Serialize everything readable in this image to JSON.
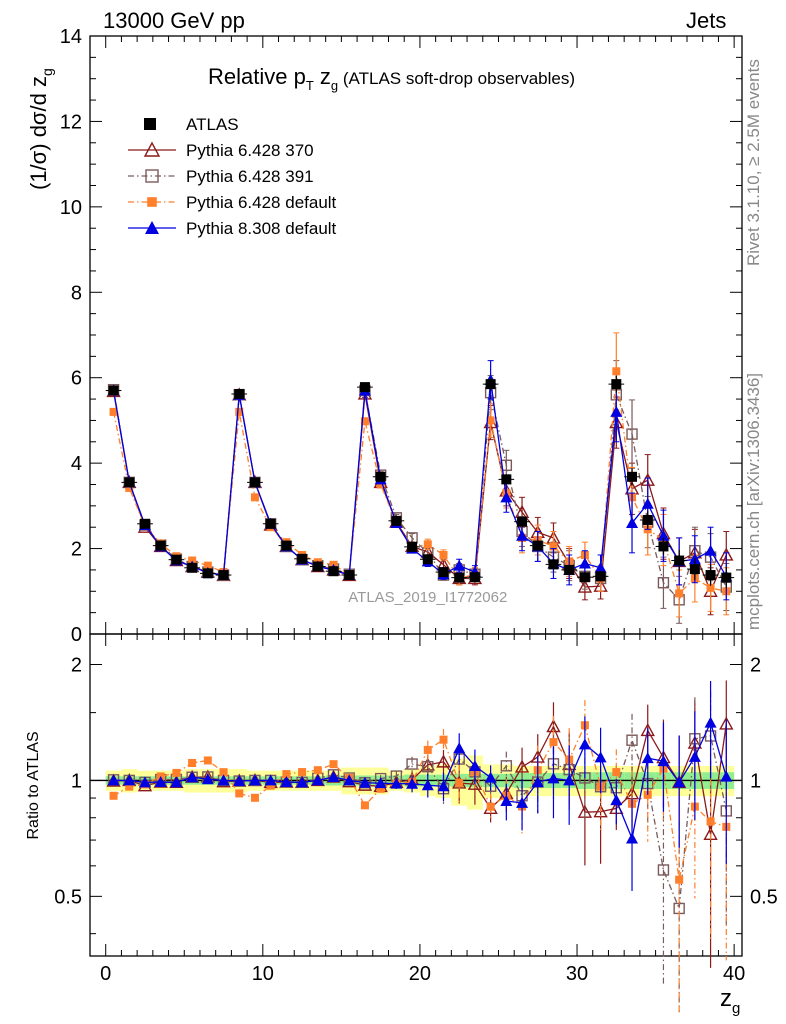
{
  "header": {
    "energy": "13000 GeV pp",
    "process": "Jets",
    "rivet": "Rivet 3.1.10, ≥ 2.5M events",
    "site": "mcplots.cern.ch [arXiv:1306.3436]"
  },
  "chart_data": [
    {
      "type": "line",
      "title_main": "Relative p",
      "title_sub": "T",
      "title_zg": " z",
      "title_g": "g",
      "title_rest": " (ATLAS soft-drop observables)",
      "ylabel_pre": "(1/σ) dσ/d z",
      "ylabel_sub": "g",
      "watermark": "ATLAS_2019_I1772062",
      "xlim": [
        -1,
        40.5
      ],
      "ylim": [
        0,
        14
      ],
      "yticks": [
        0,
        2,
        4,
        6,
        8,
        10,
        12,
        14
      ],
      "x": [
        0.5,
        1.5,
        2.5,
        3.5,
        4.5,
        5.5,
        6.5,
        7.5,
        8.5,
        9.5,
        10.5,
        11.5,
        12.5,
        13.5,
        14.5,
        15.5,
        16.5,
        17.5,
        18.5,
        19.5,
        20.5,
        21.5,
        22.5,
        23.5,
        24.5,
        25.5,
        26.5,
        27.5,
        28.5,
        29.5,
        30.5,
        31.5,
        32.5,
        33.5,
        34.5,
        35.5,
        36.5,
        37.5,
        38.5,
        39.5
      ],
      "series": [
        {
          "name": "ATLAS",
          "color": "#000000",
          "marker": "square-filled",
          "dash": "none",
          "values": [
            5.7,
            3.55,
            2.58,
            2.07,
            1.74,
            1.55,
            1.42,
            1.38,
            5.62,
            3.55,
            2.58,
            2.07,
            1.76,
            1.58,
            1.47,
            1.38,
            5.78,
            3.68,
            2.65,
            2.04,
            1.75,
            1.45,
            1.32,
            1.33,
            5.85,
            3.62,
            2.63,
            2.07,
            1.63,
            1.5,
            1.33,
            1.35,
            5.85,
            3.68,
            2.67,
            2.05,
            1.72,
            1.52,
            1.38,
            1.32
          ],
          "errors": [
            0.1,
            0.07,
            0.05,
            0.05,
            0.05,
            0.05,
            0.05,
            0.05,
            0.1,
            0.07,
            0.05,
            0.05,
            0.05,
            0.05,
            0.05,
            0.05,
            0.1,
            0.1,
            0.08,
            0.08,
            0.08,
            0.08,
            0.08,
            0.08,
            0.15,
            0.12,
            0.12,
            0.12,
            0.12,
            0.12,
            0.12,
            0.12,
            0.2,
            0.2,
            0.2,
            0.2,
            0.25,
            0.25,
            0.25,
            0.25
          ]
        },
        {
          "name": "Pythia 6.428 370",
          "color": "#8b1a1a",
          "marker": "triangle-open",
          "dash": "none",
          "values": [
            5.68,
            3.55,
            2.5,
            2.05,
            1.72,
            1.58,
            1.45,
            1.37,
            5.6,
            3.55,
            2.55,
            2.05,
            1.74,
            1.58,
            1.5,
            1.37,
            5.62,
            3.55,
            2.62,
            2.05,
            1.92,
            1.62,
            1.3,
            1.3,
            4.95,
            3.35,
            2.85,
            2.38,
            2.25,
            1.65,
            1.1,
            1.12,
            4.95,
            3.4,
            3.6,
            2.35,
            1.7,
            1.9,
            1.0,
            1.85
          ],
          "errors": [
            0.03,
            0.03,
            0.03,
            0.03,
            0.03,
            0.03,
            0.03,
            0.03,
            0.03,
            0.03,
            0.03,
            0.03,
            0.03,
            0.03,
            0.03,
            0.03,
            0.08,
            0.08,
            0.08,
            0.1,
            0.12,
            0.12,
            0.15,
            0.15,
            0.4,
            0.35,
            0.35,
            0.35,
            0.35,
            0.35,
            0.3,
            0.3,
            0.6,
            0.6,
            0.6,
            0.6,
            0.55,
            0.55,
            0.55,
            0.55
          ]
        },
        {
          "name": "Pythia 6.428 391",
          "color": "#7a5a5a",
          "marker": "square-open",
          "dash": "dashdot",
          "values": [
            5.72,
            3.55,
            2.55,
            2.08,
            1.75,
            1.58,
            1.45,
            1.38,
            5.6,
            3.55,
            2.58,
            2.05,
            1.74,
            1.6,
            1.52,
            1.4,
            5.7,
            3.72,
            2.72,
            2.25,
            1.9,
            1.38,
            1.5,
            1.4,
            5.65,
            3.95,
            2.4,
            2.05,
            1.8,
            1.6,
            1.35,
            1.3,
            5.6,
            4.68,
            2.62,
            1.2,
            0.8,
            1.95,
            1.8,
            1.1
          ],
          "errors": [
            0.03,
            0.03,
            0.03,
            0.03,
            0.03,
            0.03,
            0.03,
            0.03,
            0.03,
            0.03,
            0.03,
            0.03,
            0.03,
            0.03,
            0.03,
            0.03,
            0.08,
            0.08,
            0.08,
            0.1,
            0.12,
            0.12,
            0.15,
            0.15,
            0.4,
            0.35,
            0.35,
            0.35,
            0.35,
            0.35,
            0.3,
            0.3,
            0.8,
            0.8,
            0.6,
            0.6,
            0.55,
            0.55,
            0.55,
            0.55
          ]
        },
        {
          "name": "Pythia 6.428 default",
          "color": "#ff7f2a",
          "marker": "square-small",
          "dash": "dashdot",
          "values": [
            5.2,
            3.42,
            2.52,
            2.12,
            1.82,
            1.72,
            1.6,
            1.45,
            5.2,
            3.2,
            2.5,
            2.15,
            1.85,
            1.68,
            1.62,
            1.4,
            4.98,
            3.5,
            2.6,
            2.02,
            2.1,
            1.85,
            1.3,
            1.4,
            5.0,
            3.3,
            2.25,
            2.2,
            2.05,
            1.7,
            1.85,
            1.3,
            6.15,
            3.2,
            2.45,
            2.2,
            0.95,
            1.3,
            1.08,
            1.0
          ],
          "errors": [
            0.03,
            0.03,
            0.03,
            0.03,
            0.03,
            0.03,
            0.03,
            0.03,
            0.03,
            0.03,
            0.03,
            0.03,
            0.03,
            0.03,
            0.03,
            0.03,
            0.08,
            0.08,
            0.08,
            0.1,
            0.12,
            0.12,
            0.15,
            0.15,
            0.4,
            0.35,
            0.35,
            0.35,
            0.35,
            0.35,
            0.3,
            0.3,
            0.9,
            0.7,
            0.6,
            0.6,
            0.55,
            0.55,
            0.55,
            0.55
          ]
        },
        {
          "name": "Pythia 8.308 default",
          "color": "#0000e0",
          "marker": "triangle-filled",
          "dash": "none",
          "values": [
            5.7,
            3.55,
            2.55,
            2.05,
            1.72,
            1.58,
            1.43,
            1.38,
            5.6,
            3.55,
            2.58,
            2.05,
            1.74,
            1.58,
            1.5,
            1.38,
            5.7,
            3.62,
            2.6,
            2.0,
            1.7,
            1.4,
            1.6,
            1.45,
            5.95,
            3.2,
            2.3,
            2.05,
            1.65,
            1.5,
            1.65,
            1.55,
            5.2,
            2.6,
            3.05,
            2.3,
            1.7,
            1.75,
            1.95,
            1.35
          ],
          "errors": [
            0.03,
            0.03,
            0.03,
            0.03,
            0.03,
            0.03,
            0.03,
            0.03,
            0.03,
            0.03,
            0.03,
            0.03,
            0.03,
            0.03,
            0.03,
            0.03,
            0.08,
            0.08,
            0.08,
            0.1,
            0.12,
            0.12,
            0.15,
            0.15,
            0.45,
            0.35,
            0.35,
            0.35,
            0.35,
            0.35,
            0.3,
            0.3,
            0.7,
            0.7,
            0.6,
            0.6,
            0.55,
            0.55,
            0.55,
            0.55
          ]
        }
      ]
    },
    {
      "type": "line",
      "ylabel": "Ratio to ATLAS",
      "xlabel_main": "z",
      "xlabel_sub": "g",
      "scale": "log",
      "ylim": [
        0.35,
        2.4
      ],
      "yticks": [
        0.5,
        1,
        2
      ],
      "xticks": [
        0,
        10,
        20,
        30,
        40
      ],
      "band_inner": [
        0.025,
        0.025,
        0.025,
        0.025,
        0.025,
        0.025,
        0.025,
        0.025,
        0.025,
        0.025,
        0.025,
        0.025,
        0.025,
        0.025,
        0.03,
        0.03,
        0.03,
        0.03,
        0.03,
        0.035,
        0.035,
        0.035,
        0.04,
        0.04,
        0.04,
        0.04,
        0.045,
        0.045,
        0.045,
        0.045,
        0.05,
        0.05,
        0.05,
        0.05,
        0.05,
        0.05,
        0.05,
        0.05,
        0.05,
        0.05
      ],
      "band_outer": [
        0.06,
        0.07,
        0.06,
        0.06,
        0.06,
        0.07,
        0.07,
        0.07,
        0.07,
        0.06,
        0.06,
        0.06,
        0.06,
        0.06,
        0.06,
        0.08,
        0.08,
        0.08,
        0.06,
        0.07,
        0.09,
        0.1,
        0.14,
        0.16,
        0.1,
        0.1,
        0.09,
        0.09,
        0.09,
        0.09,
        0.09,
        0.09,
        0.09,
        0.09,
        0.09,
        0.09,
        0.09,
        0.09,
        0.09,
        0.09
      ]
    }
  ]
}
